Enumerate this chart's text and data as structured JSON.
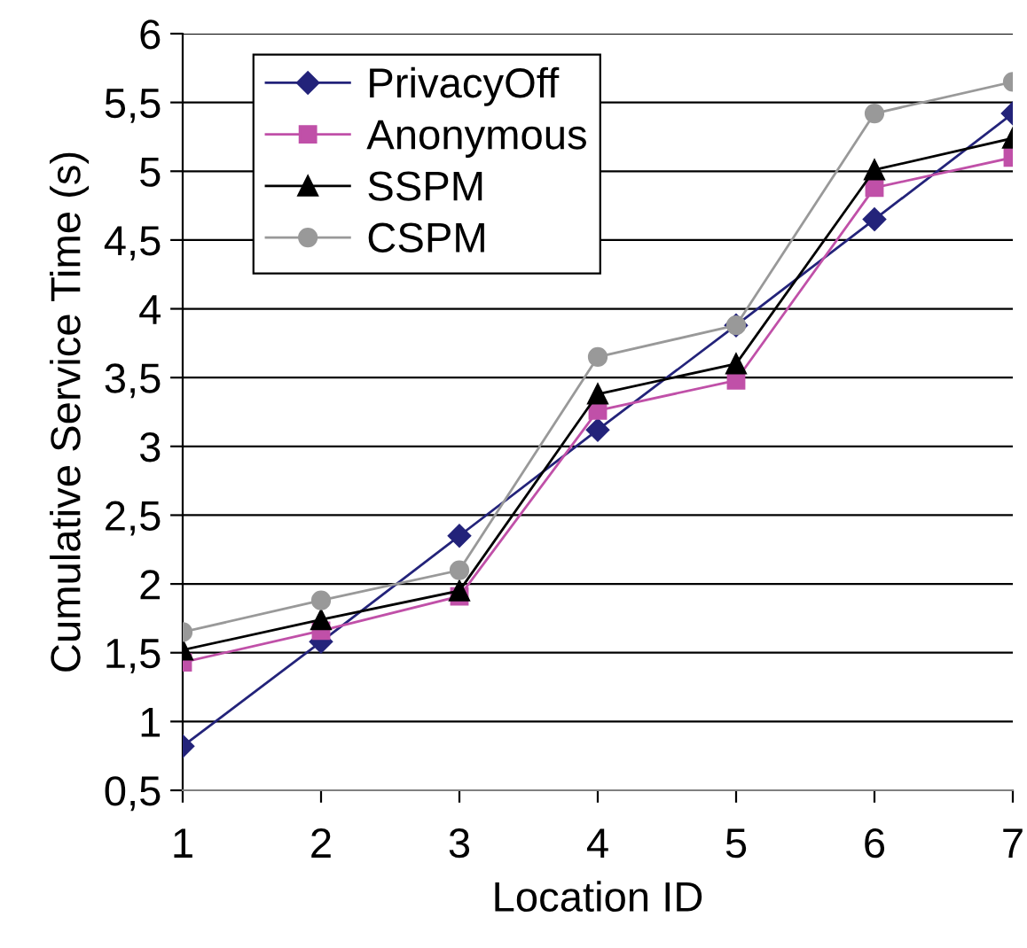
{
  "chart_data": {
    "type": "line",
    "xlabel": "Location ID",
    "ylabel": "Cumulative Service Time (s)",
    "x": [
      1,
      2,
      3,
      4,
      5,
      6,
      7
    ],
    "xlim": [
      1,
      7
    ],
    "xticks": [
      1,
      2,
      3,
      4,
      5,
      6,
      7
    ],
    "ylim": [
      0.5,
      6
    ],
    "yticks": [
      {
        "value": 0.5,
        "label": "0,5"
      },
      1,
      {
        "value": 1.5,
        "label": "1,5"
      },
      2,
      {
        "value": 2.5,
        "label": "2,5"
      },
      3,
      {
        "value": 3.5,
        "label": "3,5"
      },
      4,
      {
        "value": 4.5,
        "label": "4,5"
      },
      5,
      {
        "value": 5.5,
        "label": "5,5"
      },
      6
    ],
    "grid": "y",
    "legend": "top left",
    "line_style": "solid",
    "series": [
      {
        "name": "PrivacyOff",
        "color": "#23237a",
        "marker": "diamond",
        "values": [
          0.82,
          1.58,
          2.35,
          3.12,
          3.88,
          4.65,
          5.42
        ]
      },
      {
        "name": "Anonymous",
        "color": "#c050a8",
        "marker": "square",
        "values": [
          1.43,
          1.66,
          1.91,
          3.26,
          3.48,
          4.88,
          5.1
        ]
      },
      {
        "name": "SSPM",
        "color": "#000000",
        "marker": "triangle",
        "values": [
          1.52,
          1.74,
          1.95,
          3.38,
          3.6,
          5.01,
          5.24
        ]
      },
      {
        "name": "CSPM",
        "color": "#999999",
        "marker": "circle",
        "values": [
          1.65,
          1.88,
          2.1,
          3.65,
          3.88,
          5.42,
          5.65
        ]
      }
    ]
  }
}
